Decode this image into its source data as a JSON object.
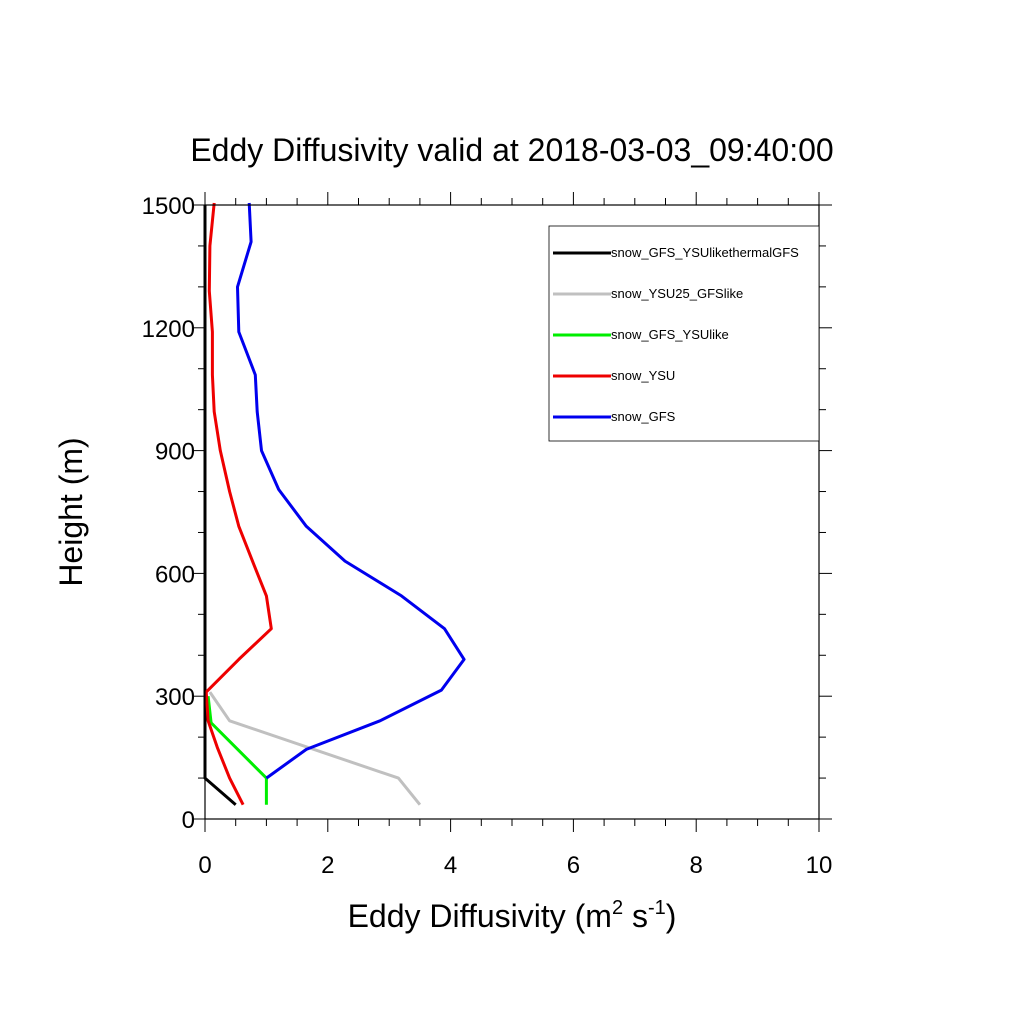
{
  "chart_data": {
    "type": "line",
    "title": "Eddy Diffusivity valid at 2018-03-03_09:40:00",
    "xlabel": {
      "base": "Eddy Diffusivity (m",
      "sup1": "2",
      "mid": " s",
      "sup2": "-1",
      "end": ")"
    },
    "ylabel": "Height (m)",
    "xlim": [
      0,
      10
    ],
    "ylim": [
      0,
      1500
    ],
    "xticks": [
      0,
      2,
      4,
      6,
      8,
      10
    ],
    "xtick_labels": [
      "0",
      "2",
      "4",
      "6",
      "8",
      "10"
    ],
    "yticks": [
      0,
      300,
      600,
      900,
      1200,
      1500
    ],
    "ytick_labels": [
      "0",
      "300",
      "600",
      "900",
      "1200",
      "1500"
    ],
    "grid": false,
    "legend_position": "top-right",
    "series": [
      {
        "name": "snow_GFS_YSUlikethermalGFS",
        "color": "#000000",
        "points": [
          [
            0.5,
            35
          ],
          [
            0,
            100
          ],
          [
            0,
            150
          ],
          [
            0,
            300
          ],
          [
            0,
            600
          ],
          [
            0,
            900
          ],
          [
            0,
            1200
          ],
          [
            0,
            1500
          ]
        ]
      },
      {
        "name": "snow_YSU25_GFSlike",
        "color": "#c0c0c0",
        "points": [
          [
            3.5,
            35
          ],
          [
            3.15,
            100
          ],
          [
            0.4,
            240
          ],
          [
            0.08,
            310
          ]
        ]
      },
      {
        "name": "snow_GFS_YSUlike",
        "color": "#00ee00",
        "points": [
          [
            1.0,
            35
          ],
          [
            1.0,
            100
          ],
          [
            0.1,
            235
          ],
          [
            0.05,
            300
          ]
        ]
      },
      {
        "name": "snow_YSU",
        "color": "#ee0000",
        "points": [
          [
            0.62,
            35
          ],
          [
            0.4,
            100
          ],
          [
            0.2,
            175
          ],
          [
            0.05,
            240
          ],
          [
            0.02,
            310
          ],
          [
            0.55,
            390
          ],
          [
            1.08,
            465
          ],
          [
            1.0,
            545
          ],
          [
            0.8,
            620
          ],
          [
            0.55,
            715
          ],
          [
            0.4,
            800
          ],
          [
            0.25,
            900
          ],
          [
            0.15,
            995
          ],
          [
            0.12,
            1085
          ],
          [
            0.12,
            1190
          ],
          [
            0.07,
            1290
          ],
          [
            0.08,
            1400
          ],
          [
            0.15,
            1505
          ]
        ]
      },
      {
        "name": "snow_GFS",
        "color": "#0000ee",
        "points": [
          [
            1.0,
            100
          ],
          [
            1.65,
            170
          ],
          [
            2.85,
            240
          ],
          [
            3.85,
            315
          ],
          [
            4.22,
            390
          ],
          [
            3.9,
            465
          ],
          [
            3.2,
            545
          ],
          [
            2.28,
            630
          ],
          [
            1.65,
            715
          ],
          [
            1.2,
            805
          ],
          [
            0.92,
            900
          ],
          [
            0.85,
            995
          ],
          [
            0.82,
            1085
          ],
          [
            0.55,
            1190
          ],
          [
            0.53,
            1300
          ],
          [
            0.75,
            1410
          ],
          [
            0.72,
            1505
          ]
        ]
      }
    ]
  }
}
